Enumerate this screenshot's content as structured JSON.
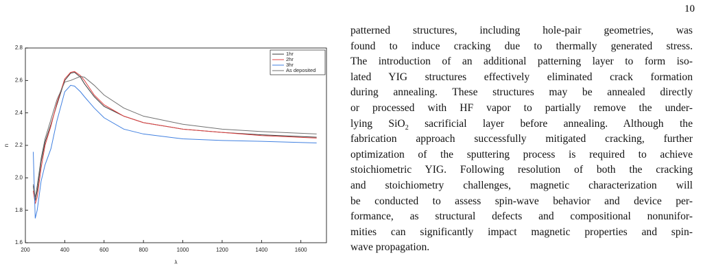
{
  "page_number": "10",
  "chart_data": {
    "type": "line",
    "xlabel": "λ",
    "ylabel": "n",
    "x": [
      240,
      250,
      260,
      280,
      300,
      330,
      360,
      400,
      430,
      450,
      480,
      500,
      550,
      600,
      700,
      800,
      1000,
      1200,
      1400,
      1680
    ],
    "series": [
      {
        "name": "1hr",
        "color": "#3a3a3a",
        "values": [
          1.95,
          1.86,
          1.92,
          2.1,
          2.22,
          2.33,
          2.45,
          2.6,
          2.645,
          2.65,
          2.62,
          2.58,
          2.5,
          2.44,
          2.38,
          2.34,
          2.3,
          2.28,
          2.265,
          2.25
        ]
      },
      {
        "name": "2hr",
        "color": "#e04040",
        "values": [
          1.92,
          1.84,
          1.88,
          2.06,
          2.2,
          2.32,
          2.46,
          2.61,
          2.65,
          2.655,
          2.63,
          2.6,
          2.51,
          2.45,
          2.38,
          2.34,
          2.3,
          2.28,
          2.26,
          2.245
        ]
      },
      {
        "name": "3hr",
        "color": "#3f7fe0",
        "values": [
          2.16,
          1.75,
          1.8,
          1.98,
          2.08,
          2.18,
          2.35,
          2.53,
          2.57,
          2.565,
          2.53,
          2.5,
          2.43,
          2.37,
          2.3,
          2.27,
          2.24,
          2.23,
          2.225,
          2.215
        ]
      },
      {
        "name": "As deposited",
        "color": "#707070",
        "values": [
          1.96,
          1.88,
          1.95,
          2.12,
          2.24,
          2.36,
          2.48,
          2.59,
          2.6,
          2.61,
          2.625,
          2.62,
          2.57,
          2.51,
          2.43,
          2.38,
          2.33,
          2.3,
          2.285,
          2.27
        ]
      }
    ],
    "xlim": [
      200,
      1730
    ],
    "xticks": [
      200,
      400,
      600,
      800,
      1000,
      1200,
      1400,
      1600
    ],
    "ylim": [
      1.6,
      2.8
    ],
    "yticks": [
      1.6,
      1.8,
      {
        "value": 2,
        "label": "2.0"
      },
      2.2,
      2.4,
      2.6,
      2.8
    ],
    "legend": "upper right"
  },
  "text": {
    "lines": [
      "patterned structures, including hole-pair geometries, was",
      "found to induce cracking due to thermally generated stress.",
      "The introduction of an additional patterning layer to form iso-",
      "lated YIG structures effectively eliminated crack formation",
      "during annealing. These structures may be annealed directly",
      "or processed with HF vapor to partially remove the under-",
      {
        "before": "lying SiO",
        "sub": "2",
        "after": " sacrificial layer before annealing. Although the"
      },
      "fabrication approach successfully mitigated cracking, further",
      "optimization of the sputtering process is required to achieve",
      "stoichiometric YIG. Following resolution of both the cracking",
      "and stoichiometry challenges, magnetic characterization will",
      "be conducted to assess spin-wave behavior and device per-",
      "formance, as structural defects and compositional nonunifor-",
      "mities can significantly impact magnetic properties and spin-",
      "wave propagation."
    ]
  }
}
